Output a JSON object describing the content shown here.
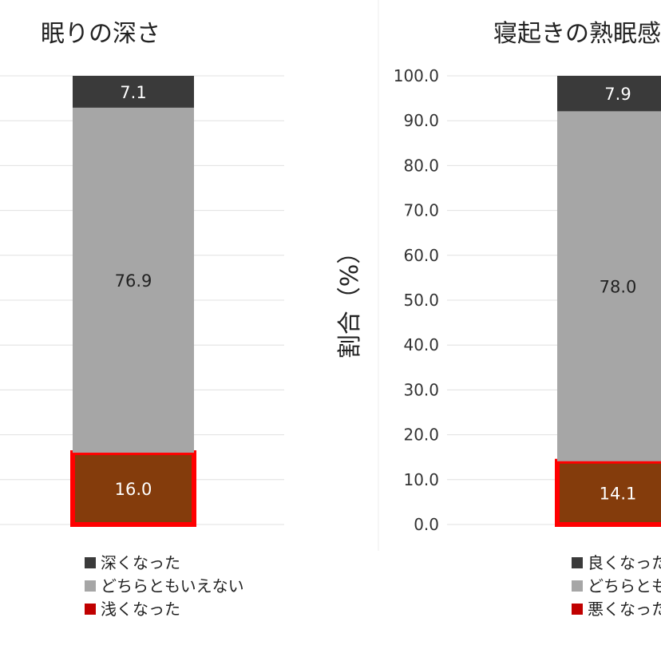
{
  "chart_data": [
    {
      "type": "bar",
      "stacked": true,
      "title": "眠りの深さ",
      "ylim": [
        0,
        100
      ],
      "grid": true,
      "series": [
        {
          "name": "浅くなった",
          "values": [
            16.0
          ],
          "color": "#843c0c",
          "legend_color": "#c00000",
          "highlight": true
        },
        {
          "name": "どちらともいえない",
          "values": [
            76.9
          ],
          "color": "#a6a6a6",
          "legend_color": "#a6a6a6",
          "highlight": false
        },
        {
          "name": "深くなった",
          "values": [
            7.1
          ],
          "color": "#3a3a3a",
          "legend_color": "#3a3a3a",
          "highlight": false
        }
      ],
      "legend_order": [
        "深くなった",
        "どちらともいえない",
        "浅くなった"
      ],
      "legend_position": "bottom"
    },
    {
      "type": "bar",
      "stacked": true,
      "title": "寝起きの熟眠感",
      "ylabel": "割合（%）",
      "ylim": [
        0,
        100
      ],
      "yticks": [
        "0.0",
        "10.0",
        "20.0",
        "30.0",
        "40.0",
        "50.0",
        "60.0",
        "70.0",
        "80.0",
        "90.0",
        "100.0"
      ],
      "grid": true,
      "series": [
        {
          "name": "悪くなった",
          "values": [
            14.1
          ],
          "color": "#843c0c",
          "legend_color": "#c00000",
          "highlight": true
        },
        {
          "name": "どちらともいえない",
          "values": [
            78.0
          ],
          "color": "#a6a6a6",
          "legend_color": "#a6a6a6",
          "highlight": false
        },
        {
          "name": "良くなった",
          "values": [
            7.9
          ],
          "color": "#3a3a3a",
          "legend_color": "#3a3a3a",
          "highlight": false
        }
      ],
      "legend_order": [
        "良くなった",
        "どちらともいえない",
        "悪くなった"
      ],
      "legend_position": "bottom"
    }
  ],
  "colors": {
    "highlight_outline": "#ff0000",
    "grid": "#e0e0e0",
    "divider": "#eeeeee"
  }
}
